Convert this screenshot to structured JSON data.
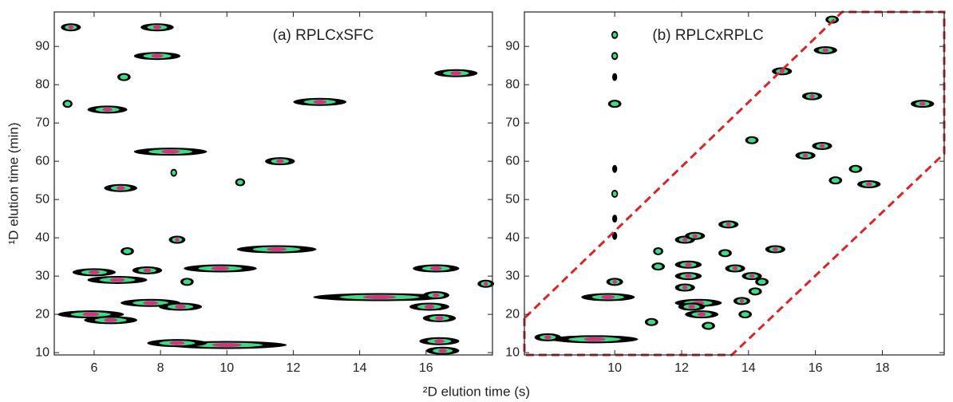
{
  "chart_data": [
    {
      "type": "contour",
      "annotation": "(a) RPLCxSFC",
      "xlabel": "²D elution time (s)",
      "ylabel": "¹D elution time (min)",
      "xlim": [
        4.8,
        18
      ],
      "ylim": [
        9.4,
        99
      ],
      "xticks": [
        6,
        8,
        10,
        12,
        14,
        16
      ],
      "yticks": [
        10,
        20,
        30,
        40,
        50,
        60,
        70,
        80,
        90
      ],
      "colors": {
        "outline": "#000000",
        "core": "#3ddc84",
        "center": "#d6307e"
      },
      "spots": {
        "x": [
          5.3,
          5.2,
          7.9,
          7.9,
          6.9,
          6.4,
          12.8,
          16.9,
          8.3,
          11.6,
          8.4,
          10.4,
          6.8,
          8.5,
          7.0,
          11.5,
          6.0,
          7.6,
          9.8,
          16.3,
          6.7,
          8.8,
          14.6,
          16.1,
          16.3,
          17.8,
          7.7,
          8.6,
          5.9,
          6.5,
          16.4,
          16.4,
          16.5,
          10.0,
          8.5
        ],
        "y": [
          95,
          75,
          95,
          87.5,
          82,
          73.5,
          75.5,
          83,
          62.5,
          60,
          57,
          54.5,
          53,
          39.5,
          36.5,
          37,
          31,
          31.5,
          32,
          32,
          29,
          28.5,
          24.5,
          22,
          25,
          28,
          23,
          22,
          20,
          18.5,
          19,
          13,
          10.5,
          12,
          12.5
        ],
        "widths": [
          0.6,
          0.3,
          1.0,
          1.4,
          0.4,
          1.2,
          1.6,
          1.3,
          2.2,
          0.9,
          0.2,
          0.3,
          1.0,
          0.5,
          0.4,
          2.4,
          1.3,
          0.9,
          2.2,
          1.4,
          1.8,
          0.4,
          4.0,
          1.2,
          0.8,
          0.5,
          1.8,
          1.3,
          2.0,
          1.6,
          1.0,
          1.2,
          1.0,
          3.6,
          1.8
        ]
      }
    },
    {
      "type": "contour",
      "annotation": "(b) RPLCxRPLC",
      "xlim": [
        7.3,
        19.85
      ],
      "ylim": [
        9.4,
        99
      ],
      "xticks": [
        10,
        12,
        14,
        16,
        18
      ],
      "yticks": [
        10,
        20,
        30,
        40,
        50,
        60,
        70,
        80,
        90
      ],
      "colors": {
        "outline": "#000000",
        "core": "#3ddc84",
        "center": "#d6307e"
      },
      "region": {
        "x": [
          7.3,
          7.3,
          13.5,
          19.85,
          19.85,
          16.8,
          7.3
        ],
        "y": [
          19,
          9.4,
          9.4,
          62,
          99,
          99,
          19
        ],
        "color": "#d62728"
      },
      "spots": {
        "x": [
          16.5,
          16.3,
          15.0,
          15.9,
          19.2,
          10.0,
          10.0,
          10.0,
          10.0,
          14.1,
          16.2,
          15.7,
          16.6,
          17.2,
          17.6,
          10.0,
          10.0,
          10.0,
          10.0,
          13.4,
          12.1,
          12.4,
          11.3,
          13.3,
          14.8,
          11.3,
          12.2,
          13.6,
          14.1,
          14.4,
          12.2,
          12.1,
          10.0,
          9.8,
          12.5,
          12.6,
          12.3,
          13.8,
          13.9,
          11.1,
          12.8,
          9.4,
          8.0,
          14.2
        ],
        "y": [
          97,
          89,
          83.5,
          77,
          75,
          75,
          93,
          87.5,
          82,
          65.5,
          64,
          61.5,
          55,
          58,
          54,
          58,
          51.5,
          45,
          40.5,
          43.5,
          39.5,
          40.5,
          36.5,
          36,
          37,
          32.5,
          33,
          32,
          30,
          28.5,
          30,
          27,
          28.5,
          24.5,
          23,
          20,
          22,
          23.5,
          20,
          18,
          17,
          13.5,
          14,
          26
        ],
        "widths": [
          0.4,
          0.7,
          0.6,
          0.6,
          0.7,
          0.4,
          0.2,
          0.2,
          0.15,
          0.4,
          0.6,
          0.6,
          0.4,
          0.4,
          0.7,
          0.15,
          0.2,
          0.15,
          0.15,
          0.6,
          0.6,
          0.6,
          0.3,
          0.4,
          0.6,
          0.4,
          0.8,
          0.6,
          0.6,
          0.4,
          0.8,
          0.6,
          0.5,
          1.6,
          1.4,
          1.0,
          0.8,
          0.5,
          0.4,
          0.4,
          0.4,
          2.6,
          0.8,
          0.4
        ]
      }
    }
  ]
}
